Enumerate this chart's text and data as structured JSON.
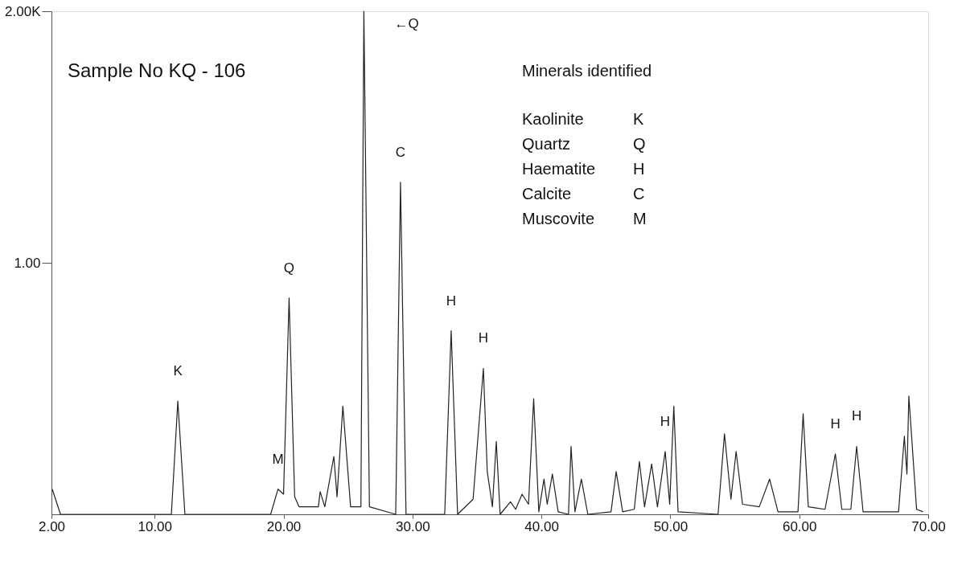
{
  "chart_data": {
    "type": "line",
    "x": [
      2.06,
      2.7,
      11.3,
      11.8,
      12.35,
      19.0,
      19.57,
      20.0,
      20.43,
      20.86,
      21.2,
      22.7,
      22.84,
      23.2,
      23.9,
      24.15,
      24.6,
      25.2,
      26.0,
      26.23,
      26.66,
      28.7,
      29.07,
      29.5,
      32.5,
      33.0,
      33.5,
      34.7,
      35.5,
      35.8,
      36.2,
      36.5,
      36.8,
      37.6,
      38.0,
      38.5,
      39.0,
      39.4,
      39.8,
      40.2,
      40.45,
      40.85,
      41.3,
      42.1,
      42.3,
      42.6,
      43.1,
      43.6,
      45.4,
      45.8,
      46.3,
      47.2,
      47.6,
      48.0,
      48.55,
      49.0,
      49.6,
      49.95,
      50.27,
      50.6,
      53.7,
      54.2,
      54.7,
      55.1,
      55.6,
      56.9,
      57.7,
      58.35,
      59.9,
      60.3,
      60.7,
      62.0,
      62.8,
      63.3,
      64.0,
      64.45,
      64.95,
      67.7,
      68.15,
      68.35,
      68.5,
      69.1,
      69.6
    ],
    "series": [
      {
        "color": "#222222",
        "values": [
          0.1,
          0.0,
          0.0,
          0.45,
          0.0,
          0.0,
          0.1,
          0.08,
          0.86,
          0.07,
          0.03,
          0.03,
          0.09,
          0.03,
          0.23,
          0.07,
          0.43,
          0.03,
          0.03,
          2.0,
          0.03,
          0.0,
          1.32,
          0.0,
          0.0,
          0.73,
          0.0,
          0.06,
          0.58,
          0.17,
          0.03,
          0.29,
          0.0,
          0.05,
          0.02,
          0.08,
          0.04,
          0.46,
          0.01,
          0.14,
          0.04,
          0.16,
          0.01,
          0.0,
          0.27,
          0.01,
          0.14,
          0.0,
          0.01,
          0.17,
          0.01,
          0.02,
          0.21,
          0.03,
          0.2,
          0.03,
          0.25,
          0.04,
          0.43,
          0.01,
          0.0,
          0.32,
          0.06,
          0.25,
          0.04,
          0.03,
          0.14,
          0.01,
          0.01,
          0.4,
          0.03,
          0.02,
          0.24,
          0.02,
          0.02,
          0.27,
          0.01,
          0.01,
          0.31,
          0.16,
          0.47,
          0.02,
          0.01
        ]
      }
    ],
    "xlim": [
      2,
      70
    ],
    "xticks": [
      {
        "value": 2,
        "label": "2.00"
      },
      {
        "value": 10,
        "label": "10.00"
      },
      {
        "value": 20,
        "label": "20.00"
      },
      {
        "value": 30,
        "label": "30.00"
      },
      {
        "value": 40,
        "label": "40.00"
      },
      {
        "value": 50,
        "label": "50.00"
      },
      {
        "value": 60,
        "label": "60.00"
      },
      {
        "value": 70,
        "label": "70.00"
      }
    ],
    "ylim": [
      0,
      2
    ],
    "yticks": [
      {
        "value": 1,
        "label": "1.00"
      },
      {
        "value": 2,
        "label": "2.00K"
      }
    ],
    "grid": false,
    "marker": "none",
    "line_style": "solid",
    "annotations": [
      "Sample No KQ - 106",
      "Minerals identified",
      "Kaolinite",
      "K",
      "Quartz",
      "Q",
      "Haematite",
      "H",
      "Calcite",
      "C",
      "Muscovite",
      "M",
      {
        "text": "K",
        "x": 11.8,
        "y": 0.45
      },
      {
        "text": "M",
        "x": 19.57,
        "y": 0.1
      },
      {
        "text": "Q",
        "x": 20.43,
        "y": 0.86
      },
      {
        "text": "←Q",
        "x": 26.23,
        "y": 2.0
      },
      {
        "text": "C",
        "x": 29.07,
        "y": 1.32
      },
      {
        "text": "H",
        "x": 33.0,
        "y": 0.73
      },
      {
        "text": "H",
        "x": 35.5,
        "y": 0.58
      },
      {
        "text": "H",
        "x": 49.6,
        "y": 0.25
      },
      {
        "text": "H",
        "x": 62.8,
        "y": 0.24
      },
      {
        "text": "H",
        "x": 64.45,
        "y": 0.27
      }
    ]
  }
}
